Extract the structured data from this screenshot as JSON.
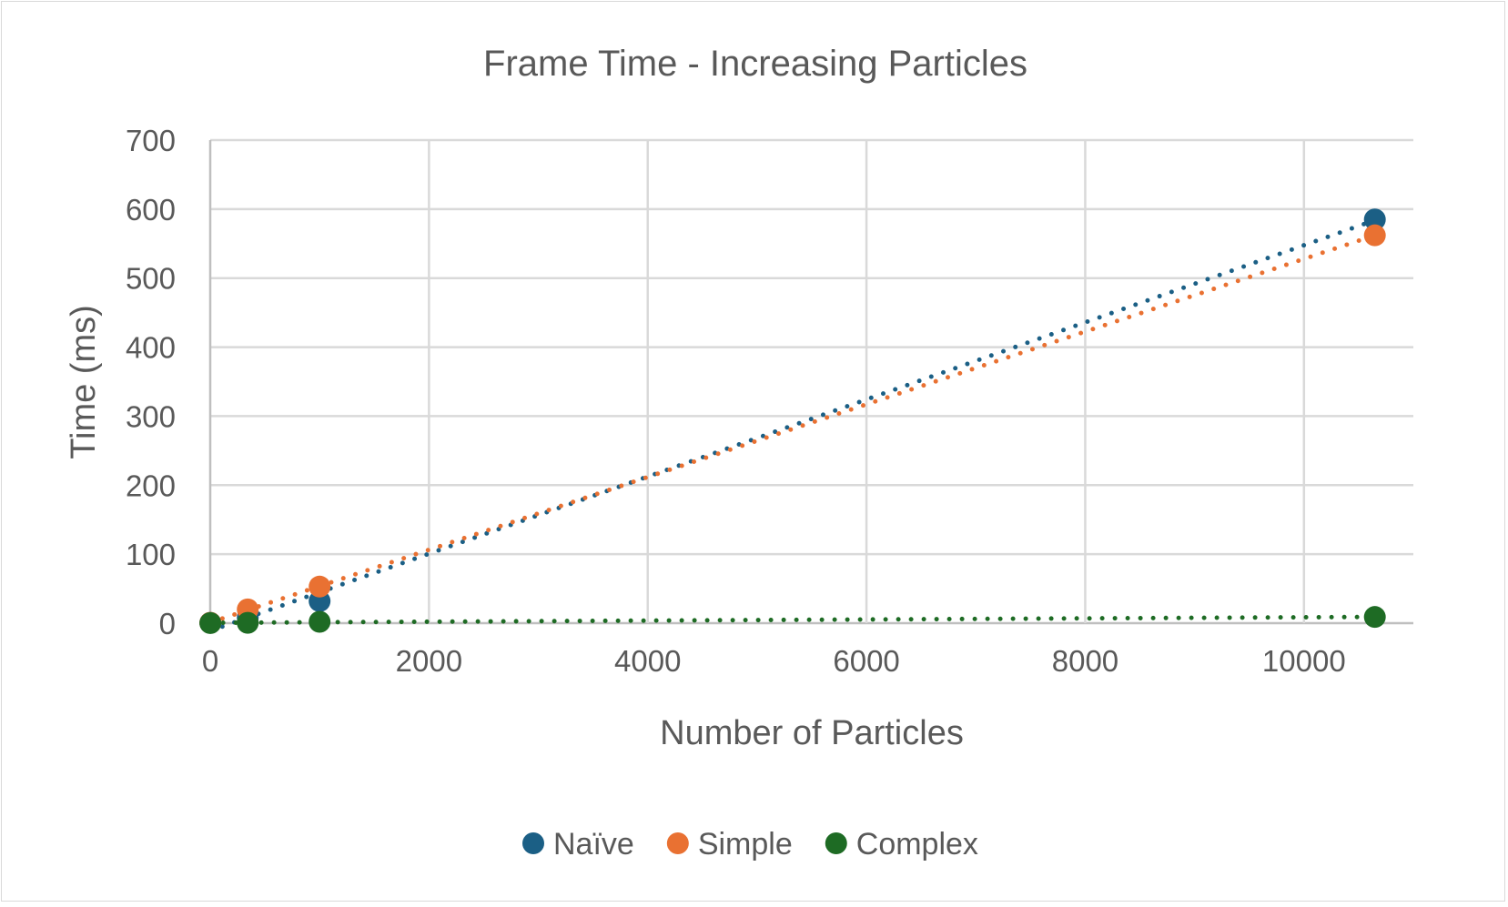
{
  "chart_data": {
    "type": "scatter",
    "title": "Frame Time - Increasing Particles",
    "xlabel": "Number of Particles",
    "ylabel": "Time (ms)",
    "xlim": [
      0,
      11000
    ],
    "ylim": [
      0,
      700
    ],
    "xticks": [
      0,
      2000,
      4000,
      6000,
      8000,
      10000
    ],
    "yticks": [
      0,
      100,
      200,
      300,
      400,
      500,
      600,
      700
    ],
    "grid": true,
    "legend_position": "bottom",
    "trendline": "linear (dotted)",
    "series": [
      {
        "name": "Naïve",
        "color": "#1b5f85",
        "x": [
          1,
          343,
          1000,
          10648
        ],
        "y": [
          0.5,
          8,
          32,
          585
        ]
      },
      {
        "name": "Simple",
        "color": "#e97132",
        "x": [
          1,
          343,
          1000,
          10648
        ],
        "y": [
          0.5,
          20,
          53,
          562
        ]
      },
      {
        "name": "Complex",
        "color": "#1e6b24",
        "x": [
          1,
          343,
          1000,
          10648
        ],
        "y": [
          0.1,
          0.5,
          2,
          9
        ]
      }
    ]
  }
}
